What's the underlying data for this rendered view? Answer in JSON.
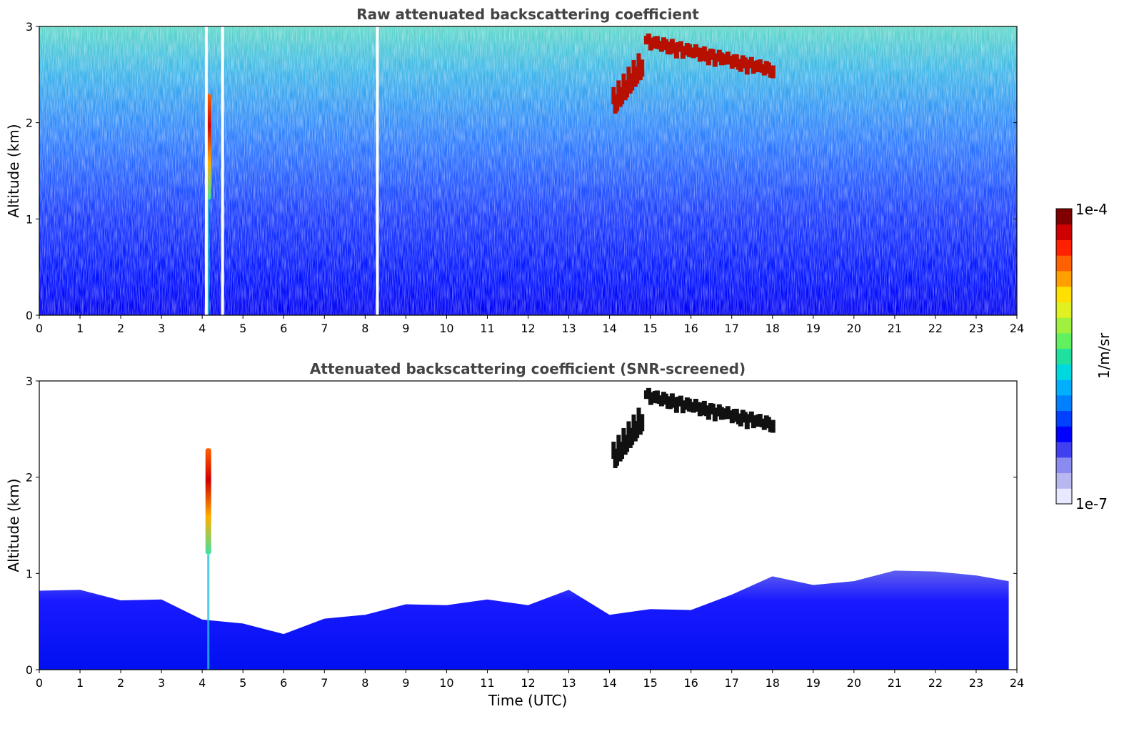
{
  "chart_data": [
    {
      "type": "heatmap",
      "title": "Raw attenuated backscattering coefficient",
      "xlabel": "",
      "ylabel": "Altitude (km)",
      "xlim": [
        0,
        24
      ],
      "ylim": [
        0,
        3
      ],
      "xticks": [
        "0",
        "1",
        "2",
        "3",
        "4",
        "5",
        "6",
        "7",
        "8",
        "9",
        "10",
        "11",
        "12",
        "13",
        "14",
        "15",
        "16",
        "17",
        "18",
        "19",
        "20",
        "21",
        "22",
        "23",
        "24"
      ],
      "yticks": [
        "0",
        "1",
        "2",
        "3"
      ],
      "features": [
        {
          "kind": "cloud-layer",
          "x_start": 14.9,
          "x_end": 18.0,
          "y_start": 2.85,
          "y_end": 2.55,
          "level": "high"
        },
        {
          "kind": "cloud-patch",
          "x_start": 14.1,
          "x_end": 14.8,
          "y_start": 2.2,
          "y_end": 2.6,
          "level": "high"
        },
        {
          "kind": "vertical-plume",
          "x": 4.15,
          "y_bottom": 1.2,
          "y_top": 2.3,
          "level": "high"
        },
        {
          "kind": "data-gap",
          "x": 8.3
        },
        {
          "kind": "data-gap",
          "x": 4.1
        },
        {
          "kind": "data-gap",
          "x": 4.5
        }
      ]
    },
    {
      "type": "heatmap",
      "title": "Attenuated backscattering coefficient (SNR-screened)",
      "xlabel": "Time (UTC)",
      "ylabel": "Altitude (km)",
      "xlim": [
        0,
        24
      ],
      "ylim": [
        0,
        3
      ],
      "xticks": [
        "0",
        "1",
        "2",
        "3",
        "4",
        "5",
        "6",
        "7",
        "8",
        "9",
        "10",
        "11",
        "12",
        "13",
        "14",
        "15",
        "16",
        "17",
        "18",
        "19",
        "20",
        "21",
        "22",
        "23",
        "24"
      ],
      "yticks": [
        "0",
        "1",
        "2",
        "3"
      ],
      "boundary_layer_top_km": {
        "x": [
          0,
          1,
          2,
          3,
          4,
          5,
          6,
          7,
          8,
          9,
          10,
          11,
          12,
          13,
          14,
          15,
          16,
          17,
          18,
          19,
          20,
          21,
          22,
          23,
          23.8
        ],
        "y": [
          0.85,
          0.8,
          0.75,
          0.7,
          0.55,
          0.45,
          0.4,
          0.5,
          0.6,
          0.65,
          0.7,
          0.7,
          0.7,
          0.8,
          0.6,
          0.6,
          0.65,
          0.75,
          1.0,
          0.85,
          0.95,
          1.0,
          1.05,
          0.95,
          0.95
        ]
      },
      "features": [
        {
          "kind": "cloud-layer",
          "x_start": 14.9,
          "x_end": 18.0,
          "y_start": 2.85,
          "y_end": 2.55,
          "level": "saturated"
        },
        {
          "kind": "cloud-patch",
          "x_start": 14.1,
          "x_end": 14.8,
          "y_start": 2.2,
          "y_end": 2.6,
          "level": "saturated"
        },
        {
          "kind": "vertical-plume",
          "x": 4.15,
          "y_bottom": 1.2,
          "y_top": 2.3,
          "level": "high"
        }
      ]
    }
  ],
  "colorbar": {
    "label": "1/m/sr",
    "max_label": "1e-4",
    "min_label": "1e-7",
    "colors": [
      "#e8e8ff",
      "#b8b8f0",
      "#8a8af0",
      "#4040f0",
      "#0000ff",
      "#0040ff",
      "#0080ff",
      "#00b0ff",
      "#00d8e0",
      "#20e0a0",
      "#60f060",
      "#a0f040",
      "#e0f020",
      "#ffe000",
      "#ffa000",
      "#ff6000",
      "#ff2000",
      "#d00000",
      "#800000"
    ]
  }
}
